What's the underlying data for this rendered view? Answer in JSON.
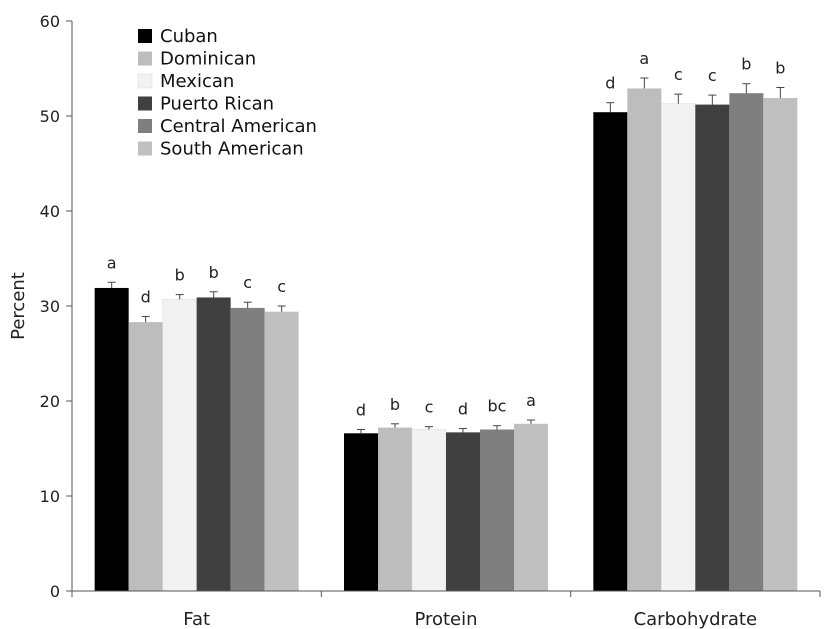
{
  "chart_data": {
    "type": "bar",
    "ylabel": "Percent",
    "ylim": [
      0,
      60
    ],
    "yticks": [
      0,
      10,
      20,
      30,
      40,
      50,
      60
    ],
    "categories": [
      "Fat",
      "Protein",
      "Carbohydrate"
    ],
    "grid": false,
    "legend_position": "top-left",
    "series": [
      {
        "name": "Cuban",
        "color": "#000000",
        "values": [
          31.9,
          16.6,
          50.4
        ],
        "errors": [
          0.6,
          0.4,
          1.0
        ],
        "labels": [
          "a",
          "d",
          "d"
        ]
      },
      {
        "name": "Dominican",
        "color": "#bdbdbd",
        "values": [
          28.3,
          17.2,
          52.9
        ],
        "errors": [
          0.6,
          0.4,
          1.1
        ],
        "labels": [
          "d",
          "b",
          "a"
        ]
      },
      {
        "name": "Mexican",
        "color": "#f2f2f2",
        "values": [
          30.7,
          17.0,
          51.3
        ],
        "errors": [
          0.5,
          0.3,
          1.0
        ],
        "labels": [
          "b",
          "c",
          "c"
        ]
      },
      {
        "name": "Puerto Rican",
        "color": "#404040",
        "values": [
          30.9,
          16.7,
          51.2
        ],
        "errors": [
          0.6,
          0.4,
          1.0
        ],
        "labels": [
          "b",
          "d",
          "c"
        ]
      },
      {
        "name": "Central American",
        "color": "#7f7f7f",
        "values": [
          29.8,
          17.0,
          52.4
        ],
        "errors": [
          0.6,
          0.4,
          1.0
        ],
        "labels": [
          "c",
          "bc",
          "b"
        ]
      },
      {
        "name": "South American",
        "color": "#c0c0c0",
        "values": [
          29.4,
          17.6,
          51.9
        ],
        "errors": [
          0.6,
          0.4,
          1.1
        ],
        "labels": [
          "c",
          "a",
          "b"
        ]
      }
    ]
  }
}
